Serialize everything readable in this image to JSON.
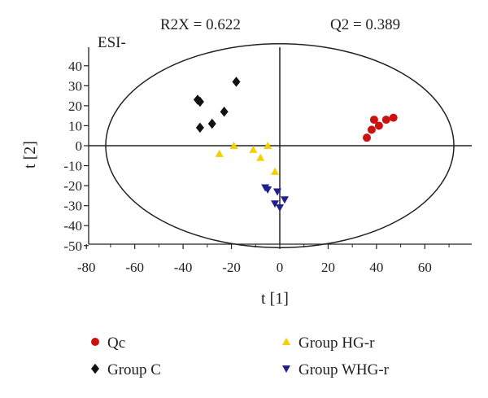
{
  "chart_data": {
    "type": "scatter",
    "title": "",
    "xlabel": "t [1]",
    "ylabel": "t [2]",
    "xlim": [
      -80,
      80
    ],
    "ylim": [
      -50,
      45
    ],
    "x_ticks": [
      -80,
      -60,
      -40,
      -20,
      0,
      20,
      40,
      60
    ],
    "y_ticks": [
      -50,
      -40,
      -30,
      -20,
      -10,
      0,
      10,
      20,
      30,
      40
    ],
    "grid": false,
    "legend_position": "bottom",
    "annotations": {
      "r2x": "R2X = 0.622",
      "q2": "Q2 = 0.389",
      "mode": "ESI-"
    },
    "ellipse": {
      "center": [
        0,
        0
      ],
      "x_radius": 72,
      "y_radius": 51
    },
    "series": [
      {
        "name": "Qc",
        "marker": "circle",
        "color": "#cc1111",
        "points": [
          [
            36,
            4
          ],
          [
            38,
            8
          ],
          [
            39,
            13
          ],
          [
            41,
            10
          ],
          [
            44,
            13
          ],
          [
            47,
            14
          ]
        ]
      },
      {
        "name": "Group C",
        "marker": "diamond",
        "color": "#111111",
        "points": [
          [
            -34,
            23
          ],
          [
            -33,
            22
          ],
          [
            -18,
            32
          ],
          [
            -23,
            17
          ],
          [
            -28,
            11
          ],
          [
            -33,
            9
          ]
        ]
      },
      {
        "name": "Group HG-r",
        "marker": "triangle-up",
        "color": "#f5d000",
        "points": [
          [
            -25,
            -4
          ],
          [
            -19,
            0
          ],
          [
            -11,
            -2
          ],
          [
            -8,
            -6
          ],
          [
            -5,
            0
          ],
          [
            -2,
            -13
          ]
        ]
      },
      {
        "name": "Group WHG-r",
        "marker": "triangle-down",
        "color": "#1f1f8e",
        "points": [
          [
            -6,
            -21
          ],
          [
            -5,
            -22
          ],
          [
            -1,
            -23
          ],
          [
            -2,
            -29
          ],
          [
            0,
            -31
          ],
          [
            2,
            -27
          ]
        ]
      }
    ]
  }
}
